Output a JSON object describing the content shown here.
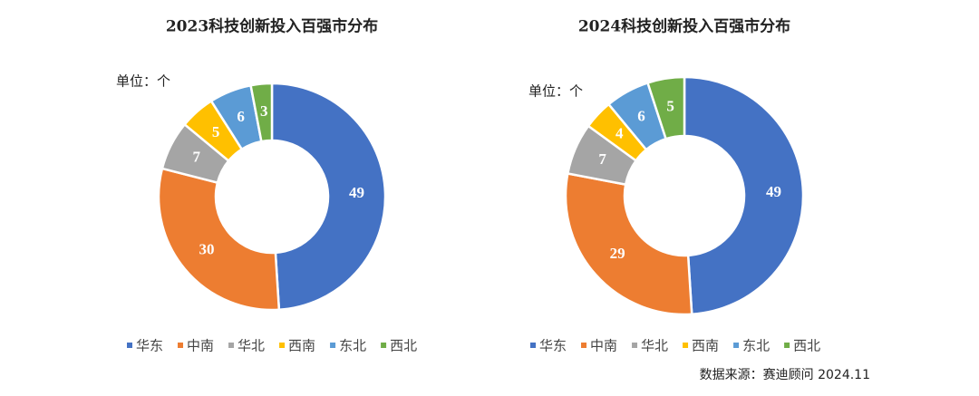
{
  "chart_data": [
    {
      "type": "pie",
      "title": "2023科技创新投入百强市分布",
      "unit": "单位：个",
      "categories": [
        "华东",
        "中南",
        "华北",
        "西南",
        "东北",
        "西北"
      ],
      "values": [
        49,
        30,
        7,
        5,
        6,
        3
      ],
      "colors": [
        "#4472c4",
        "#ed7d31",
        "#a5a5a5",
        "#ffc000",
        "#5b9bd5",
        "#70ad47"
      ],
      "legend": "bottom"
    },
    {
      "type": "pie",
      "title": "2024科技创新投入百强市分布",
      "unit": "单位：个",
      "categories": [
        "华东",
        "中南",
        "华北",
        "西南",
        "东北",
        "西北"
      ],
      "values": [
        49,
        29,
        7,
        4,
        6,
        5
      ],
      "colors": [
        "#4472c4",
        "#ed7d31",
        "#a5a5a5",
        "#ffc000",
        "#5b9bd5",
        "#70ad47"
      ],
      "legend": "bottom"
    }
  ],
  "source": "数据来源：赛迪顾问 2024.11"
}
